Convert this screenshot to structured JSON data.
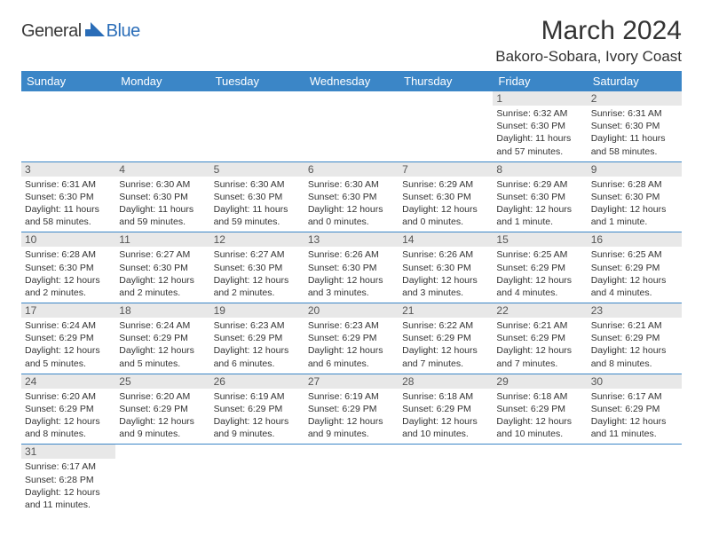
{
  "logo": {
    "part1": "General",
    "part2": "Blue",
    "icon_color": "#2a6db8"
  },
  "title": {
    "month": "March 2024",
    "location": "Bakoro-Sobara, Ivory Coast"
  },
  "styles": {
    "header_bg": "#3b86c7",
    "header_text": "#ffffff",
    "daybar_bg": "#e8e8e8",
    "daybar_text": "#555555",
    "cell_border": "#3b86c7",
    "body_text": "#333333",
    "cell_fontsize": 10.5,
    "daynum_fontsize": 12,
    "header_fontsize": 13,
    "title_fontsize": 30,
    "location_fontsize": 17
  },
  "weekdays": [
    "Sunday",
    "Monday",
    "Tuesday",
    "Wednesday",
    "Thursday",
    "Friday",
    "Saturday"
  ],
  "weeks": [
    [
      null,
      null,
      null,
      null,
      null,
      {
        "n": "1",
        "sr": "Sunrise: 6:32 AM",
        "ss": "Sunset: 6:30 PM",
        "dl": "Daylight: 11 hours and 57 minutes."
      },
      {
        "n": "2",
        "sr": "Sunrise: 6:31 AM",
        "ss": "Sunset: 6:30 PM",
        "dl": "Daylight: 11 hours and 58 minutes."
      }
    ],
    [
      {
        "n": "3",
        "sr": "Sunrise: 6:31 AM",
        "ss": "Sunset: 6:30 PM",
        "dl": "Daylight: 11 hours and 58 minutes."
      },
      {
        "n": "4",
        "sr": "Sunrise: 6:30 AM",
        "ss": "Sunset: 6:30 PM",
        "dl": "Daylight: 11 hours and 59 minutes."
      },
      {
        "n": "5",
        "sr": "Sunrise: 6:30 AM",
        "ss": "Sunset: 6:30 PM",
        "dl": "Daylight: 11 hours and 59 minutes."
      },
      {
        "n": "6",
        "sr": "Sunrise: 6:30 AM",
        "ss": "Sunset: 6:30 PM",
        "dl": "Daylight: 12 hours and 0 minutes."
      },
      {
        "n": "7",
        "sr": "Sunrise: 6:29 AM",
        "ss": "Sunset: 6:30 PM",
        "dl": "Daylight: 12 hours and 0 minutes."
      },
      {
        "n": "8",
        "sr": "Sunrise: 6:29 AM",
        "ss": "Sunset: 6:30 PM",
        "dl": "Daylight: 12 hours and 1 minute."
      },
      {
        "n": "9",
        "sr": "Sunrise: 6:28 AM",
        "ss": "Sunset: 6:30 PM",
        "dl": "Daylight: 12 hours and 1 minute."
      }
    ],
    [
      {
        "n": "10",
        "sr": "Sunrise: 6:28 AM",
        "ss": "Sunset: 6:30 PM",
        "dl": "Daylight: 12 hours and 2 minutes."
      },
      {
        "n": "11",
        "sr": "Sunrise: 6:27 AM",
        "ss": "Sunset: 6:30 PM",
        "dl": "Daylight: 12 hours and 2 minutes."
      },
      {
        "n": "12",
        "sr": "Sunrise: 6:27 AM",
        "ss": "Sunset: 6:30 PM",
        "dl": "Daylight: 12 hours and 2 minutes."
      },
      {
        "n": "13",
        "sr": "Sunrise: 6:26 AM",
        "ss": "Sunset: 6:30 PM",
        "dl": "Daylight: 12 hours and 3 minutes."
      },
      {
        "n": "14",
        "sr": "Sunrise: 6:26 AM",
        "ss": "Sunset: 6:30 PM",
        "dl": "Daylight: 12 hours and 3 minutes."
      },
      {
        "n": "15",
        "sr": "Sunrise: 6:25 AM",
        "ss": "Sunset: 6:29 PM",
        "dl": "Daylight: 12 hours and 4 minutes."
      },
      {
        "n": "16",
        "sr": "Sunrise: 6:25 AM",
        "ss": "Sunset: 6:29 PM",
        "dl": "Daylight: 12 hours and 4 minutes."
      }
    ],
    [
      {
        "n": "17",
        "sr": "Sunrise: 6:24 AM",
        "ss": "Sunset: 6:29 PM",
        "dl": "Daylight: 12 hours and 5 minutes."
      },
      {
        "n": "18",
        "sr": "Sunrise: 6:24 AM",
        "ss": "Sunset: 6:29 PM",
        "dl": "Daylight: 12 hours and 5 minutes."
      },
      {
        "n": "19",
        "sr": "Sunrise: 6:23 AM",
        "ss": "Sunset: 6:29 PM",
        "dl": "Daylight: 12 hours and 6 minutes."
      },
      {
        "n": "20",
        "sr": "Sunrise: 6:23 AM",
        "ss": "Sunset: 6:29 PM",
        "dl": "Daylight: 12 hours and 6 minutes."
      },
      {
        "n": "21",
        "sr": "Sunrise: 6:22 AM",
        "ss": "Sunset: 6:29 PM",
        "dl": "Daylight: 12 hours and 7 minutes."
      },
      {
        "n": "22",
        "sr": "Sunrise: 6:21 AM",
        "ss": "Sunset: 6:29 PM",
        "dl": "Daylight: 12 hours and 7 minutes."
      },
      {
        "n": "23",
        "sr": "Sunrise: 6:21 AM",
        "ss": "Sunset: 6:29 PM",
        "dl": "Daylight: 12 hours and 8 minutes."
      }
    ],
    [
      {
        "n": "24",
        "sr": "Sunrise: 6:20 AM",
        "ss": "Sunset: 6:29 PM",
        "dl": "Daylight: 12 hours and 8 minutes."
      },
      {
        "n": "25",
        "sr": "Sunrise: 6:20 AM",
        "ss": "Sunset: 6:29 PM",
        "dl": "Daylight: 12 hours and 9 minutes."
      },
      {
        "n": "26",
        "sr": "Sunrise: 6:19 AM",
        "ss": "Sunset: 6:29 PM",
        "dl": "Daylight: 12 hours and 9 minutes."
      },
      {
        "n": "27",
        "sr": "Sunrise: 6:19 AM",
        "ss": "Sunset: 6:29 PM",
        "dl": "Daylight: 12 hours and 9 minutes."
      },
      {
        "n": "28",
        "sr": "Sunrise: 6:18 AM",
        "ss": "Sunset: 6:29 PM",
        "dl": "Daylight: 12 hours and 10 minutes."
      },
      {
        "n": "29",
        "sr": "Sunrise: 6:18 AM",
        "ss": "Sunset: 6:29 PM",
        "dl": "Daylight: 12 hours and 10 minutes."
      },
      {
        "n": "30",
        "sr": "Sunrise: 6:17 AM",
        "ss": "Sunset: 6:29 PM",
        "dl": "Daylight: 12 hours and 11 minutes."
      }
    ],
    [
      {
        "n": "31",
        "sr": "Sunrise: 6:17 AM",
        "ss": "Sunset: 6:28 PM",
        "dl": "Daylight: 12 hours and 11 minutes."
      },
      null,
      null,
      null,
      null,
      null,
      null
    ]
  ]
}
